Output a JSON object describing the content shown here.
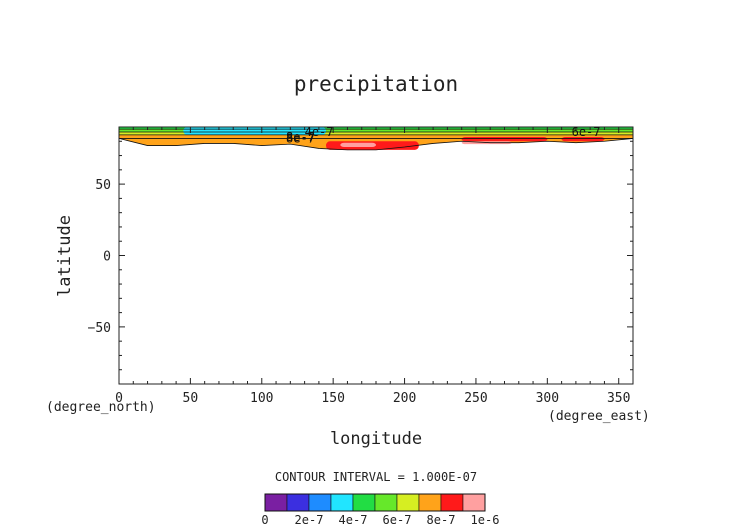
{
  "chart_data": {
    "type": "heatmap",
    "title": "precipitation",
    "xlabel": "longitude",
    "ylabel": "latitude",
    "x_unit": "(degree_east)",
    "y_unit": "(degree_north)",
    "xlim": [
      0,
      360
    ],
    "ylim": [
      -90,
      90
    ],
    "x_ticks": [
      "0",
      "50",
      "100",
      "150",
      "200",
      "250",
      "300",
      "350"
    ],
    "y_ticks": [
      "50",
      "0",
      "−50"
    ],
    "contour_interval_text": "CONTOUR INTERVAL = 1.000E-07",
    "contour_labels": [
      "4e-7",
      "6e-7",
      "8e-7",
      "8e-7"
    ],
    "colorbar_labels": [
      "0",
      "2e-7",
      "4e-7",
      "6e-7",
      "8e-7",
      "1e-6"
    ],
    "colorbar_colors": [
      "#7a1fa2",
      "#3b2fe0",
      "#1e8cff",
      "#21e5ff",
      "#22dd44",
      "#66e82a",
      "#d6ee22",
      "#ffa31a",
      "#ff1a1a",
      "#ffa0a0"
    ],
    "colorbar_range": [
      0,
      1e-06
    ],
    "grid": false,
    "field": {
      "lon": [
        0,
        20,
        40,
        60,
        80,
        100,
        120,
        140,
        160,
        180,
        200,
        220,
        240,
        260,
        280,
        300,
        320,
        340,
        360
      ],
      "band_tops_lat": [
        90,
        88.5,
        86.5,
        84.5,
        82
      ],
      "band_bottoms_lat": [
        [
          88.5,
          88.5,
          88.5,
          88.5,
          88.5,
          88.5,
          88.5,
          88.5,
          88.5,
          88.5,
          88.5,
          88.5,
          88.5,
          88.5,
          88.5,
          88.5,
          88.5,
          88.5,
          88.5
        ],
        [
          86.5,
          86.5,
          86.5,
          86.5,
          86.5,
          86.5,
          86.5,
          86.5,
          86.5,
          86.5,
          86.5,
          86.5,
          86.5,
          86.5,
          86.5,
          86.5,
          86.5,
          86.5,
          86.5
        ],
        [
          84.5,
          84.5,
          84.5,
          84.5,
          84.5,
          84.5,
          84.5,
          84.5,
          84.5,
          84.5,
          84.5,
          84.5,
          84.5,
          84.5,
          84.5,
          84.5,
          84.5,
          84.5,
          84.5
        ],
        [
          82,
          82,
          82,
          82,
          82,
          82,
          82,
          82,
          82,
          82,
          82,
          82,
          82,
          82,
          82,
          82,
          82,
          82,
          82
        ],
        [
          82,
          77,
          77,
          78.5,
          78.5,
          77,
          78,
          75,
          74,
          74,
          76,
          78.5,
          80,
          79,
          79,
          80,
          79,
          80,
          82
        ]
      ],
      "band_colors": [
        "#22dd44",
        "#66e82a",
        "#d6ee22",
        "#ffa31a",
        "#ffa31a"
      ],
      "cyan_patch": {
        "lon": [
          45,
          145
        ],
        "lat": [
          84.5,
          90
        ]
      },
      "red_patches": [
        {
          "lon": [
            145,
            210
          ],
          "lat": [
            74,
            80
          ]
        },
        {
          "lon": [
            240,
            300
          ],
          "lat": [
            80,
            83
          ]
        },
        {
          "lon": [
            310,
            340
          ],
          "lat": [
            80,
            83
          ]
        }
      ],
      "pink_patches": [
        {
          "lon": [
            240,
            275
          ],
          "lat": [
            78,
            80
          ]
        },
        {
          "lon": [
            155,
            180
          ],
          "lat": [
            76,
            79
          ]
        }
      ]
    }
  }
}
